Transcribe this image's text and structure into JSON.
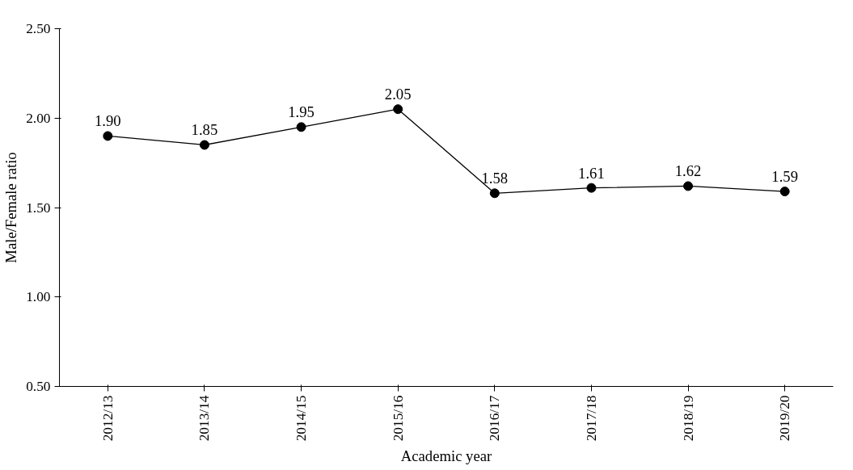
{
  "chart_data": {
    "type": "line",
    "xlabel": "Academic year",
    "ylabel": "Male/Female ratio",
    "categories": [
      "2012/13",
      "2013/14",
      "2014/15",
      "2015/16",
      "2016/17",
      "2017/18",
      "2018/19",
      "2019/20"
    ],
    "series": [
      {
        "color": "#000000",
        "values": [
          1.9,
          1.85,
          1.95,
          2.05,
          1.58,
          1.61,
          1.62,
          1.59
        ],
        "value_labels": [
          "1.90",
          "1.85",
          "1.95",
          "2.05",
          "1.58",
          "1.61",
          "1.62",
          "1.59"
        ]
      }
    ],
    "ylim": [
      0.5,
      2.5
    ],
    "yticks": [
      {
        "value": 0.5,
        "label": "0.50"
      },
      {
        "value": 1.0,
        "label": "1.00"
      },
      {
        "value": 1.5,
        "label": "1.50"
      },
      {
        "value": 2.0,
        "label": "2.00"
      },
      {
        "value": 2.5,
        "label": "2.50"
      }
    ],
    "grid": false,
    "marker": "circle",
    "line_style": "solid"
  }
}
